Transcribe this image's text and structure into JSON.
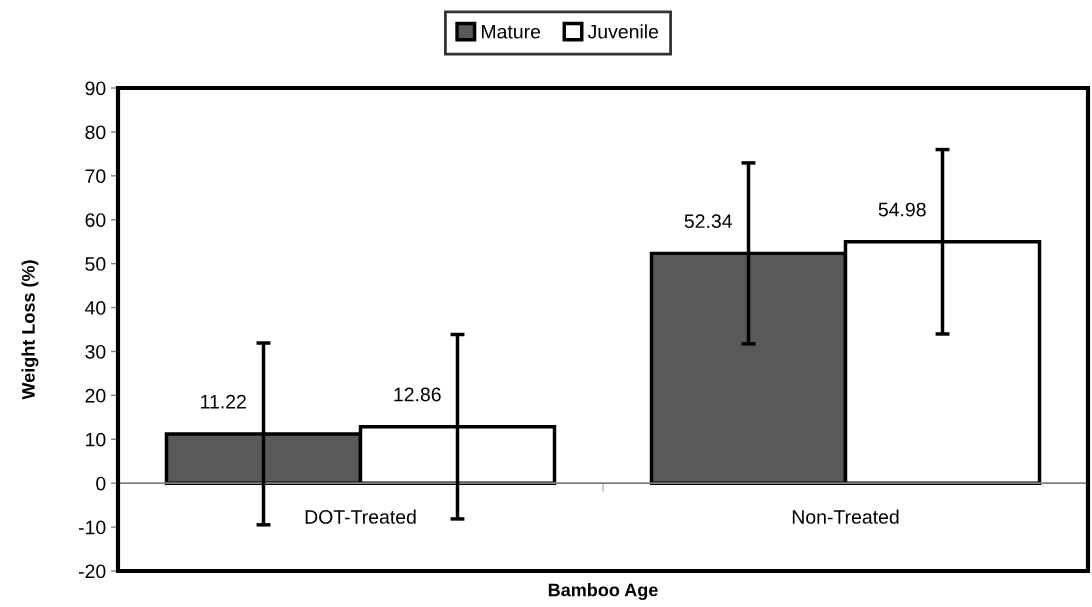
{
  "chart_data": {
    "type": "bar",
    "categories": [
      "DOT-Treated",
      "Non-Treated"
    ],
    "xlabel": "Bamboo Age",
    "ylabel": "Weight Loss (%)",
    "series": [
      {
        "name": "Mature",
        "color": "#595959",
        "values": [
          11.22,
          52.34
        ],
        "errors": [
          20.7,
          20.6
        ]
      },
      {
        "name": "Juvenile",
        "color": "#ffffff",
        "values": [
          12.86,
          54.98
        ],
        "errors": [
          21.0,
          21.0
        ]
      }
    ],
    "ylim": [
      -20,
      90
    ],
    "yticks": [
      -20,
      -10,
      0,
      10,
      20,
      30,
      40,
      50,
      60,
      70,
      80,
      90
    ],
    "grid": false,
    "legend": "top",
    "data_labels": true
  }
}
